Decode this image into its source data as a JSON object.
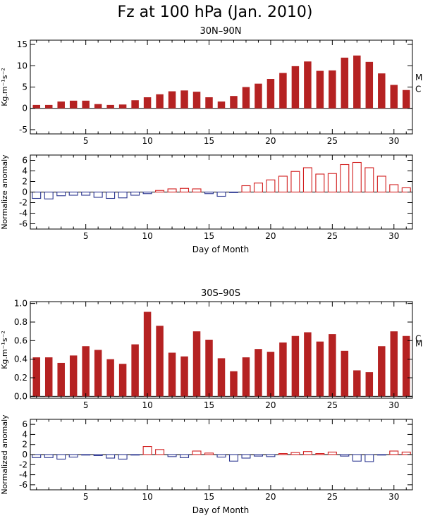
{
  "figure": {
    "title": "Fz at 100 hPa (Jan. 2010)"
  },
  "chart_data": [
    {
      "id": "nh-bars",
      "type": "bar",
      "title": "30N–90N",
      "xlabel": "",
      "ylabel": "Kg.m⁻¹s⁻²",
      "x": [
        1,
        2,
        3,
        4,
        5,
        6,
        7,
        8,
        9,
        10,
        11,
        12,
        13,
        14,
        15,
        16,
        17,
        18,
        19,
        20,
        21,
        22,
        23,
        24,
        25,
        26,
        27,
        28,
        29,
        30,
        31
      ],
      "values": [
        0.8,
        0.8,
        1.6,
        1.8,
        1.8,
        1.0,
        0.8,
        0.9,
        1.9,
        2.6,
        3.3,
        4.0,
        4.2,
        3.9,
        2.6,
        1.6,
        2.9,
        5.0,
        5.8,
        6.9,
        8.3,
        9.9,
        11.0,
        8.8,
        8.9,
        11.9,
        12.4,
        10.9,
        8.2,
        5.5,
        4.3
      ],
      "xlim": [
        1,
        31
      ],
      "ylim": [
        -6,
        16
      ],
      "yticks": [
        -5,
        0,
        5,
        10,
        15
      ],
      "xticks": [
        5,
        10,
        15,
        20,
        25,
        30
      ],
      "bar_color": "#b52222",
      "side_labels": [
        {
          "text": "M",
          "y": 7.2
        },
        {
          "text": "C",
          "y": 4.5
        }
      ]
    },
    {
      "id": "nh-anom",
      "type": "bar",
      "title": "",
      "xlabel": "Day of Month",
      "ylabel": "Normalize anomaly",
      "x": [
        1,
        2,
        3,
        4,
        5,
        6,
        7,
        8,
        9,
        10,
        11,
        12,
        13,
        14,
        15,
        16,
        17,
        18,
        19,
        20,
        21,
        22,
        23,
        24,
        25,
        26,
        27,
        28,
        29,
        30,
        31
      ],
      "values": [
        -1.2,
        -1.3,
        -0.7,
        -0.6,
        -0.6,
        -1.0,
        -1.2,
        -1.1,
        -0.6,
        -0.3,
        0.3,
        0.6,
        0.7,
        0.6,
        -0.3,
        -0.8,
        -0.1,
        1.2,
        1.7,
        2.3,
        3.0,
        3.9,
        4.6,
        3.4,
        3.5,
        5.2,
        5.6,
        4.6,
        3.0,
        1.4,
        0.8
      ],
      "xlim": [
        1,
        31
      ],
      "ylim": [
        -7,
        7
      ],
      "yticks": [
        -6,
        -4,
        -2,
        0,
        2,
        4,
        6
      ],
      "xticks": [
        5,
        10,
        15,
        20,
        25,
        30
      ],
      "positive_color": "#d21e1e",
      "negative_color": "#2a3590"
    },
    {
      "id": "sh-bars",
      "type": "bar",
      "title": "30S–90S",
      "xlabel": "",
      "ylabel": "Kg.m⁻¹s⁻²",
      "x": [
        1,
        2,
        3,
        4,
        5,
        6,
        7,
        8,
        9,
        10,
        11,
        12,
        13,
        14,
        15,
        16,
        17,
        18,
        19,
        20,
        21,
        22,
        23,
        24,
        25,
        26,
        27,
        28,
        29,
        30,
        31
      ],
      "values": [
        0.42,
        0.42,
        0.36,
        0.44,
        0.54,
        0.5,
        0.4,
        0.35,
        0.56,
        0.91,
        0.76,
        0.47,
        0.43,
        0.7,
        0.61,
        0.41,
        0.27,
        0.42,
        0.51,
        0.48,
        0.58,
        0.65,
        0.69,
        0.59,
        0.67,
        0.49,
        0.28,
        0.26,
        0.54,
        0.7,
        0.65
      ],
      "xlim": [
        1,
        31
      ],
      "ylim": [
        -0.02,
        1.02
      ],
      "yticks": [
        0.0,
        0.2,
        0.4,
        0.6,
        0.8,
        1.0
      ],
      "xticks": [
        5,
        10,
        15,
        20,
        25,
        30
      ],
      "bar_color": "#b52222",
      "side_labels": [
        {
          "text": "M",
          "y": 0.57
        },
        {
          "text": "C",
          "y": 0.62
        }
      ]
    },
    {
      "id": "sh-anom",
      "type": "bar",
      "title": "",
      "xlabel": "Day of Month",
      "ylabel": "Normalized anomaly",
      "x": [
        1,
        2,
        3,
        4,
        5,
        6,
        7,
        8,
        9,
        10,
        11,
        12,
        13,
        14,
        15,
        16,
        17,
        18,
        19,
        20,
        21,
        22,
        23,
        24,
        25,
        26,
        27,
        28,
        29,
        30,
        31
      ],
      "values": [
        -0.6,
        -0.6,
        -0.9,
        -0.5,
        -0.1,
        -0.2,
        -0.7,
        -0.9,
        -0.1,
        1.6,
        1.0,
        -0.4,
        -0.6,
        0.7,
        0.3,
        -0.5,
        -1.3,
        -0.7,
        -0.3,
        -0.4,
        0.2,
        0.4,
        0.6,
        0.2,
        0.5,
        -0.3,
        -1.3,
        -1.4,
        -0.1,
        0.7,
        0.5
      ],
      "xlim": [
        1,
        31
      ],
      "ylim": [
        -7,
        7
      ],
      "yticks": [
        -6,
        -4,
        -2,
        0,
        2,
        4,
        6
      ],
      "xticks": [
        5,
        10,
        15,
        20,
        25,
        30
      ],
      "positive_color": "#d21e1e",
      "negative_color": "#2a3590"
    }
  ]
}
